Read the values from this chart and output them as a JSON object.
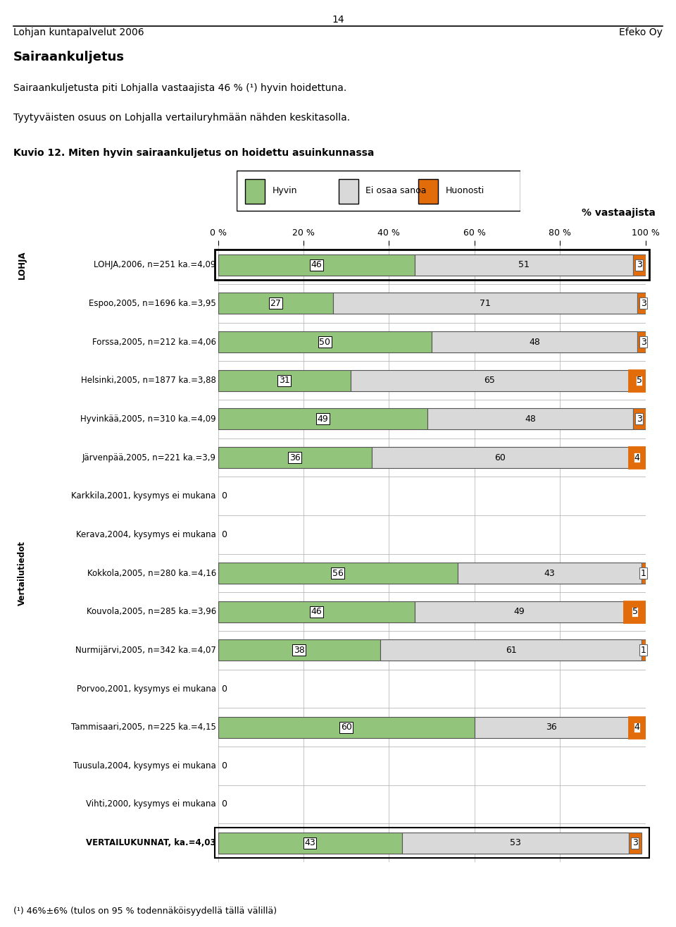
{
  "page_num": "14",
  "header_left": "Lohjan kuntapalvelut 2006",
  "header_right": "Efeko Oy",
  "title_bold": "Sairaankuljetus",
  "paragraph1": "Sairaankuljetusta piti Lohjalla vastaajista 46 % (¹) hyvin hoidettuna.",
  "paragraph2": "Tyytyväisten osuus on Lohjalla vertailuryhmään nähden keskitasolla.",
  "kuvio_title": "Kuvio 12. Miten hyvin sairaankuljetus on hoidettu asuinkunnassa",
  "footer": "(¹) 46%±6% (tulos on 95 % todennäköisyydellä tällä välillä)",
  "legend_items": [
    "Hyvin",
    "Ei osaa sanoa",
    "Huonosti"
  ],
  "legend_colors": [
    "#92c47b",
    "#d9d9d9",
    "#e26b0a"
  ],
  "axis_title": "% vastaajista",
  "x_ticks": [
    "0 %",
    "20 %",
    "40 %",
    "60 %",
    "80 %",
    "100 %"
  ],
  "x_values": [
    0,
    20,
    40,
    60,
    80,
    100
  ],
  "group_label_lohja": "LOHJA",
  "group_label_vertailu": "Vertailutiedot",
  "rows": [
    {
      "label": "LOHJA,2006, n=251 ka.=4,09",
      "hyvin": 46,
      "ei": 51,
      "huonosti": 3,
      "is_lohja": true,
      "no_data": false,
      "is_total": false
    },
    {
      "label": "Espoo,2005, n=1696 ka.=3,95",
      "hyvin": 27,
      "ei": 71,
      "huonosti": 3,
      "is_lohja": false,
      "no_data": false,
      "is_total": false
    },
    {
      "label": "Forssa,2005, n=212 ka.=4,06",
      "hyvin": 50,
      "ei": 48,
      "huonosti": 3,
      "is_lohja": false,
      "no_data": false,
      "is_total": false
    },
    {
      "label": "Helsinki,2005, n=1877 ka.=3,88",
      "hyvin": 31,
      "ei": 65,
      "huonosti": 5,
      "is_lohja": false,
      "no_data": false,
      "is_total": false
    },
    {
      "label": "Hyvinkää,2005, n=310 ka.=4,09",
      "hyvin": 49,
      "ei": 48,
      "huonosti": 3,
      "is_lohja": false,
      "no_data": false,
      "is_total": false
    },
    {
      "label": "Järvenpää,2005, n=221 ka.=3,9",
      "hyvin": 36,
      "ei": 60,
      "huonosti": 4,
      "is_lohja": false,
      "no_data": false,
      "is_total": false
    },
    {
      "label": "Karkkila,2001, kysymys ei mukana",
      "hyvin": 0,
      "ei": 0,
      "huonosti": 0,
      "is_lohja": false,
      "no_data": true,
      "is_total": false
    },
    {
      "label": "Kerava,2004, kysymys ei mukana",
      "hyvin": 0,
      "ei": 0,
      "huonosti": 0,
      "is_lohja": false,
      "no_data": true,
      "is_total": false
    },
    {
      "label": "Kokkola,2005, n=280 ka.=4,16",
      "hyvin": 56,
      "ei": 43,
      "huonosti": 1,
      "is_lohja": false,
      "no_data": false,
      "is_total": false
    },
    {
      "label": "Kouvola,2005, n=285 ka.=3,96",
      "hyvin": 46,
      "ei": 49,
      "huonosti": 5,
      "is_lohja": false,
      "no_data": false,
      "is_total": false
    },
    {
      "label": "Nurmijärvi,2005, n=342 ka.=4,07",
      "hyvin": 38,
      "ei": 61,
      "huonosti": 1,
      "is_lohja": false,
      "no_data": false,
      "is_total": false
    },
    {
      "label": "Porvoo,2001, kysymys ei mukana",
      "hyvin": 0,
      "ei": 0,
      "huonosti": 0,
      "is_lohja": false,
      "no_data": true,
      "is_total": false
    },
    {
      "label": "Tammisaari,2005, n=225 ka.=4,15",
      "hyvin": 60,
      "ei": 36,
      "huonosti": 4,
      "is_lohja": false,
      "no_data": false,
      "is_total": false
    },
    {
      "label": "Tuusula,2004, kysymys ei mukana",
      "hyvin": 0,
      "ei": 0,
      "huonosti": 0,
      "is_lohja": false,
      "no_data": true,
      "is_total": false
    },
    {
      "label": "Vihti,2000, kysymys ei mukana",
      "hyvin": 0,
      "ei": 0,
      "huonosti": 0,
      "is_lohja": false,
      "no_data": true,
      "is_total": false
    },
    {
      "label": "VERTAILUKUNNAT, ka.=4,03",
      "hyvin": 43,
      "ei": 53,
      "huonosti": 3,
      "is_lohja": false,
      "no_data": false,
      "is_total": true
    }
  ],
  "bar_height": 0.55,
  "color_hyvin": "#92c47b",
  "color_ei": "#d9d9d9",
  "color_huonosti": "#e26b0a",
  "bg_color": "#ffffff"
}
